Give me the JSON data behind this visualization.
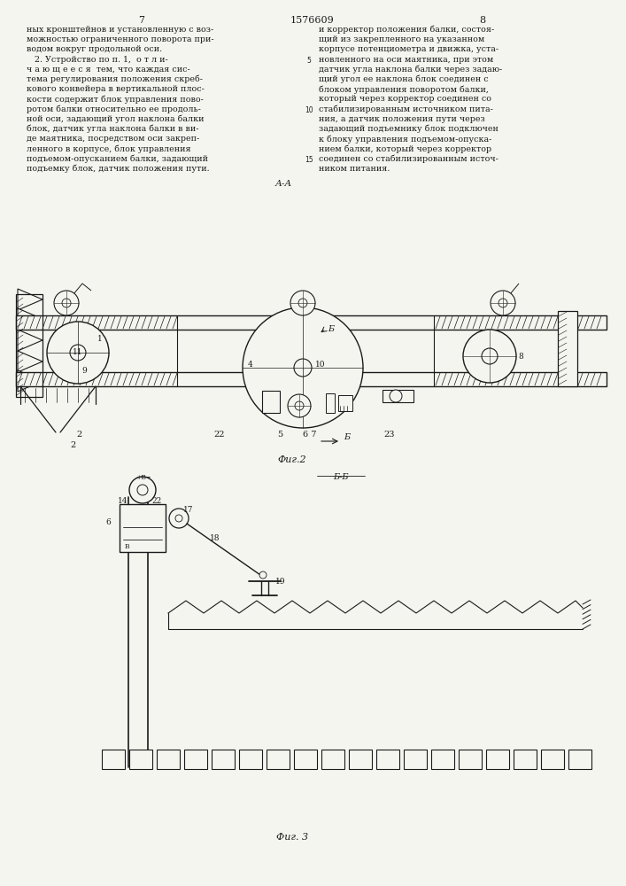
{
  "page_number_left": "7",
  "patent_number": "1576609",
  "page_number_right": "8",
  "left_lines": [
    "ных кронштейнов и установленную с воз-",
    "можностью ограниченного поворота при-",
    "водом вокруг продольной оси.",
    "   2. Устройство по п. 1,  о т л и-",
    "ч а ю щ е е с я  тем, что каждая сис-",
    "тема регулирования положения скреб-",
    "кового конвейера в вертикальной плос-",
    "кости содержит блок управления пово-",
    "ротом балки относительно ее продоль-",
    "ной оси, задающий угол наклона балки",
    "блок, датчик угла наклона балки в ви-",
    "де маятника, посредством оси закреп-",
    "ленного в корпусе, блок управления",
    "подъемом-опусканием балки, задающий",
    "подъемку блок, датчик положения пути."
  ],
  "right_lines": [
    "и корректор положения балки, состоя-",
    "щий из закрепленного на указанном",
    "корпусе потенциометра и движка, уста-",
    "новленного на оси маятника, при этом",
    "датчик угла наклона балки через задаю-",
    "щий угол ее наклона блок соединен с",
    "блоком управления поворотом балки,",
    "который через корректор соединен со",
    "стабилизированным источником пита-",
    "ния, а датчик положения пути через",
    "задающий подъемнику блок подключен",
    "к блоку управления подъемом-опуска-",
    "нием балки, который через корректор",
    "соединен со стабилизированным источ-",
    "ником питания."
  ],
  "background_color": "#f5f5f0",
  "text_color": "#1a1a1a",
  "line_color": "#1a1a1a",
  "fig2_label": "А-А",
  "fig2_caption": "Фиг.2",
  "fig3_section_label": "Б-Б",
  "fig3_caption": "Фиг. 3"
}
